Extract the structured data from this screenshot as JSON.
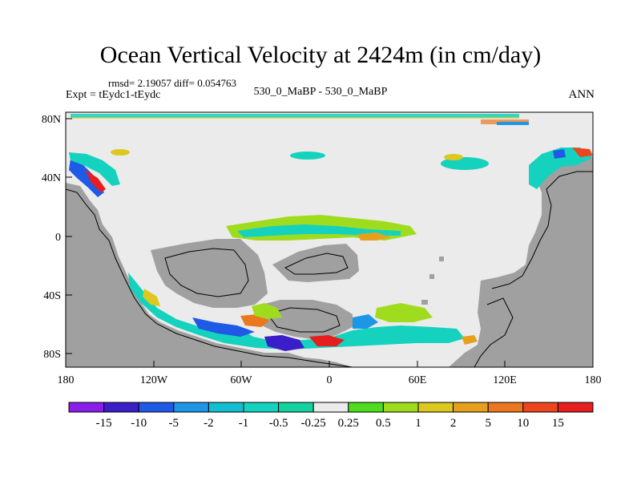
{
  "title": "Ocean Vertical Velocity at 2424m (in cm/day)",
  "stats": "rmsd= 2.19057 diff= 0.054763",
  "experiment": "Expt = tEydc1-tEydc",
  "case": "530_0_MaBP - 530_0_MaBP",
  "period": "ANN",
  "axes": {
    "lat_labels": [
      "80N",
      "40N",
      "0",
      "40S",
      "80S"
    ],
    "lon_labels": [
      "180",
      "120W",
      "60W",
      "0",
      "60E",
      "120E",
      "180"
    ]
  },
  "colorbar": {
    "labels": [
      "-15",
      "-10",
      "-5",
      "-2",
      "-1",
      "-0.5",
      "-0.25",
      "0.25",
      "0.5",
      "1",
      "2",
      "5",
      "10",
      "15"
    ],
    "colors": [
      "#8a1ee8",
      "#3a1ec8",
      "#1e5ae6",
      "#1e96e6",
      "#14bed2",
      "#14d2be",
      "#14d2a0",
      "#ebebeb",
      "#50dc1e",
      "#a0dc1e",
      "#dcc81e",
      "#e6a01e",
      "#eb781e",
      "#eb461e",
      "#e61e1e"
    ]
  },
  "palette": {
    "land": "#a0a0a0",
    "ocean": "#ebebeb",
    "coast": "#000000"
  }
}
